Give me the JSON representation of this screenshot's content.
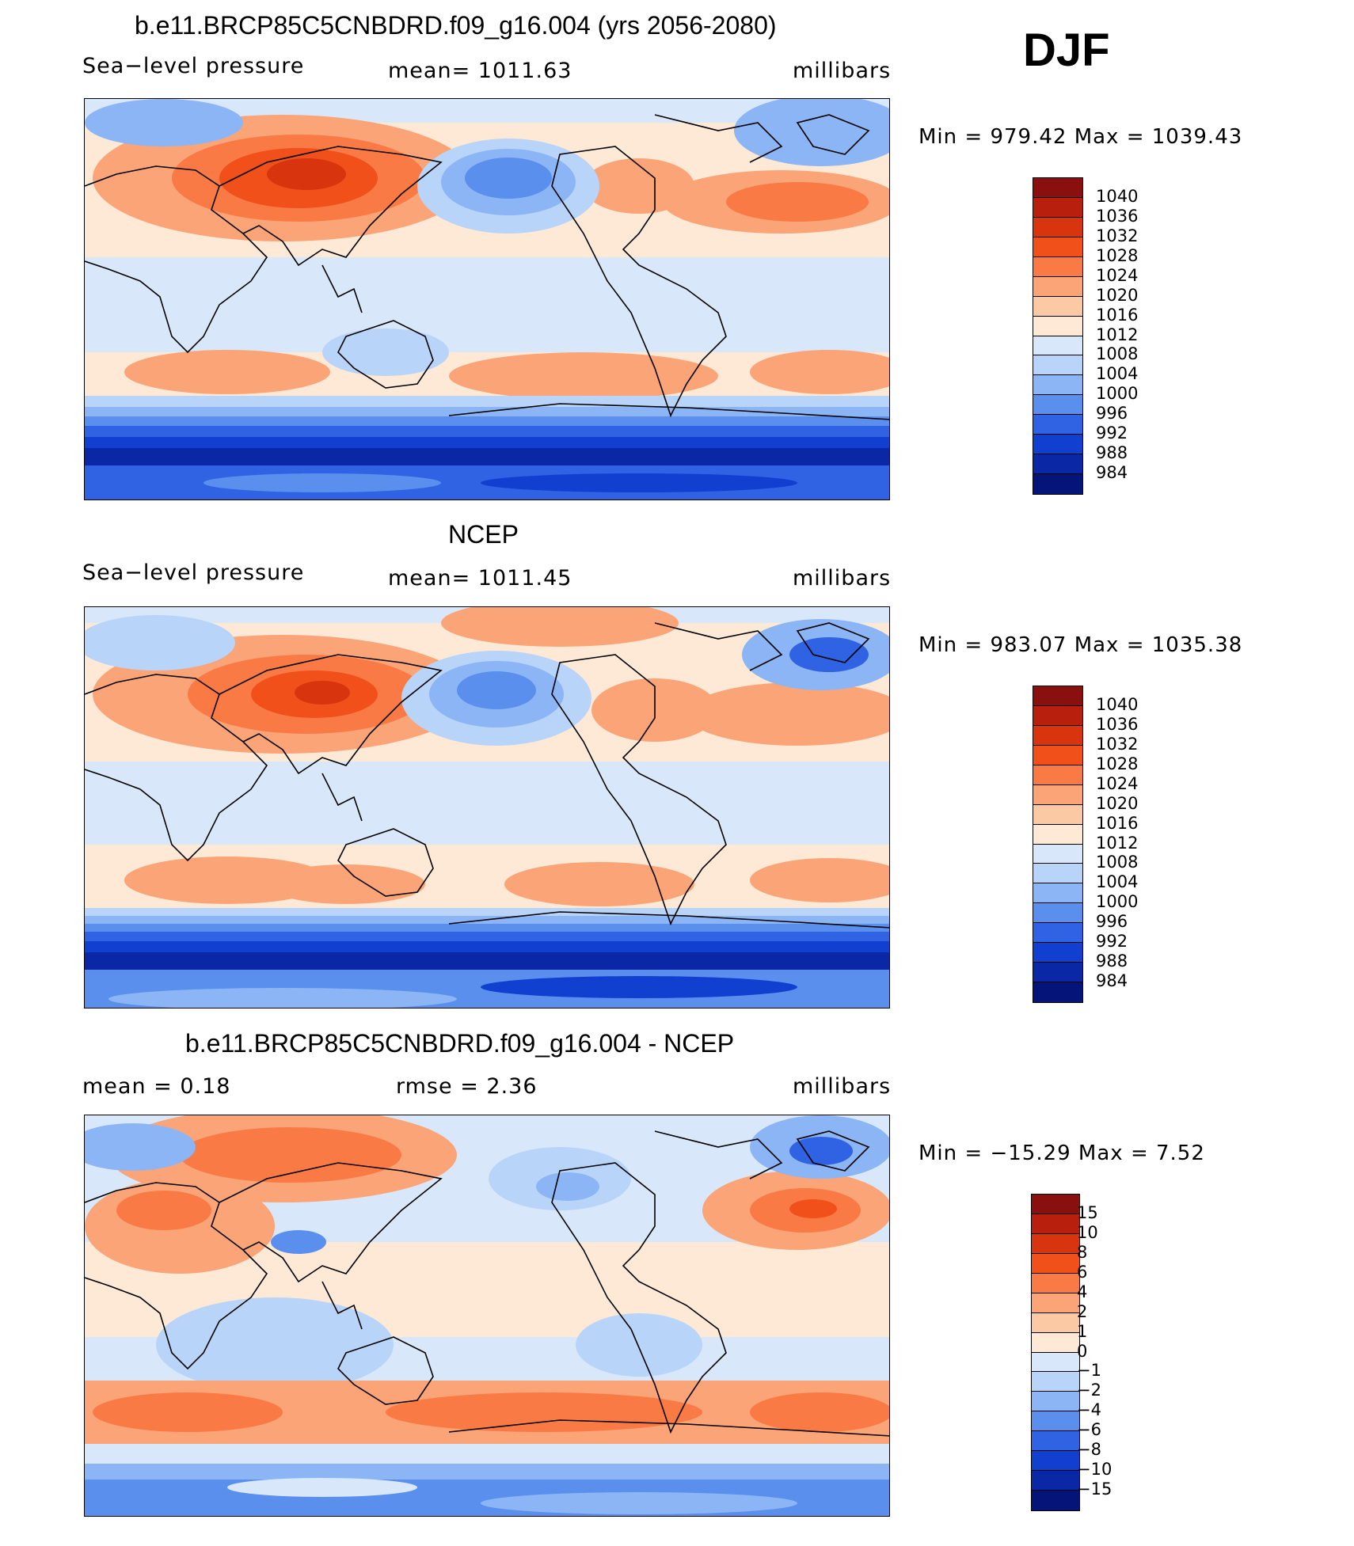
{
  "season": "DJF",
  "panels": [
    {
      "title": "b.e11.BRCP85C5CNBDRD.f09_g16.004 (yrs 2056-2080)",
      "left_label": "Sea−level pressure",
      "center_label": "mean=  1011.63",
      "right_label": "millibars",
      "minmax": "Min  =  979.42  Max  =  1039.43"
    },
    {
      "title": "NCEP",
      "left_label": "Sea−level pressure",
      "center_label": "mean=  1011.45",
      "right_label": "millibars",
      "minmax": "Min  =  983.07  Max  =  1035.38"
    },
    {
      "title": "b.e11.BRCP85C5CNBDRD.f09_g16.004 - NCEP",
      "left_label": "mean  =     0.18",
      "center_label": "rmse  =     2.36",
      "right_label": "millibars",
      "minmax": "Min  =  −15.29  Max  =     7.52"
    }
  ],
  "colorbar_pressure": {
    "labels": [
      "1040",
      "1036",
      "1032",
      "1028",
      "1024",
      "1020",
      "1016",
      "1012",
      "1008",
      "1004",
      "1000",
      "996",
      "992",
      "988",
      "984"
    ],
    "colors": [
      "#8a0f0f",
      "#b81f0c",
      "#d8350e",
      "#f1501b",
      "#fa7a45",
      "#fba477",
      "#fcc9a5",
      "#fde9d6",
      "#d8e8fa",
      "#b8d4f8",
      "#8bb5f4",
      "#5a8fed",
      "#2f63e3",
      "#1140d0",
      "#0a28a6",
      "#051478"
    ]
  },
  "colorbar_diff": {
    "labels": [
      "15",
      "10",
      "8",
      "6",
      "4",
      "2",
      "1",
      "0",
      "−1",
      "−2",
      "−4",
      "−6",
      "−8",
      "−10",
      "−15"
    ],
    "colors": [
      "#8a0f0f",
      "#b81f0c",
      "#d8350e",
      "#f1501b",
      "#fa7a45",
      "#fba477",
      "#fcc9a5",
      "#fde9d6",
      "#d8e8fa",
      "#b8d4f8",
      "#8bb5f4",
      "#5a8fed",
      "#2f63e3",
      "#1140d0",
      "#0a28a6",
      "#051478"
    ]
  }
}
